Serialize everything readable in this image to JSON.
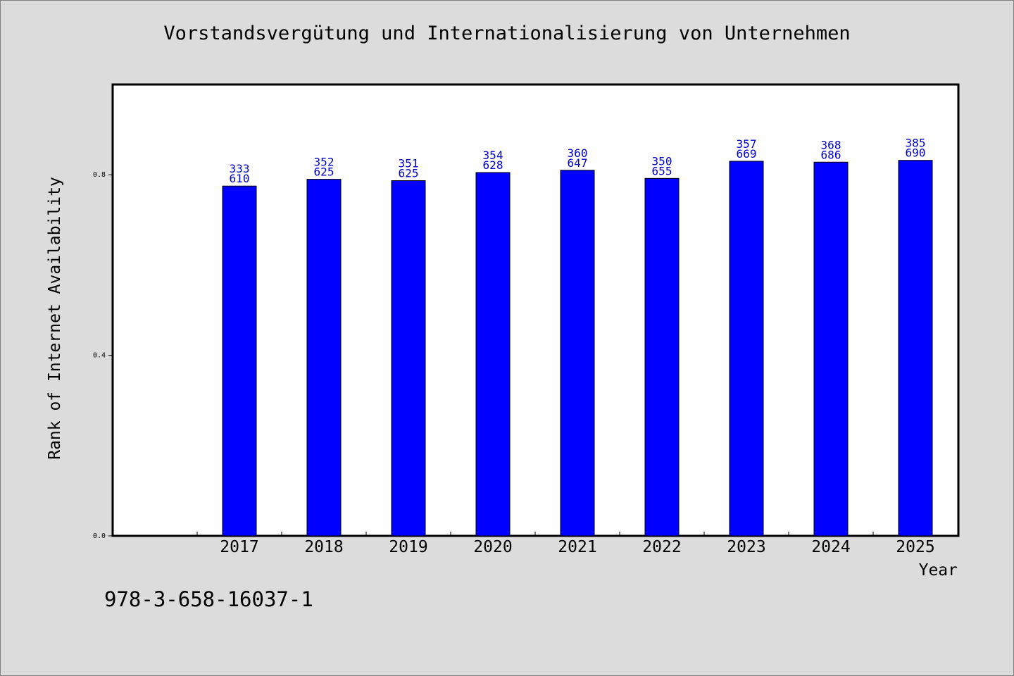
{
  "chart_data": {
    "type": "bar",
    "title": "Vorstandsvergütung und Internationalisierung von Unternehmen",
    "xlabel": "Year",
    "ylabel": "Rank of Internet Availability",
    "ylim": [
      0,
      1.0
    ],
    "yticks": [
      "0.0",
      "0.4",
      "0.8"
    ],
    "ytick_values": [
      0.0,
      0.4,
      0.8
    ],
    "categories": [
      "2017",
      "2018",
      "2019",
      "2020",
      "2021",
      "2022",
      "2023",
      "2024",
      "2025"
    ],
    "values": [
      0.775,
      0.79,
      0.787,
      0.805,
      0.81,
      0.792,
      0.83,
      0.828,
      0.832
    ],
    "label_top": [
      "333",
      "352",
      "351",
      "354",
      "360",
      "350",
      "357",
      "368",
      "385"
    ],
    "label_bottom": [
      "610",
      "625",
      "625",
      "628",
      "647",
      "655",
      "669",
      "686",
      "690"
    ],
    "bar_color": "#0000ff",
    "label_color": "#0000cc",
    "grid": false
  },
  "footer": {
    "id_text": "978-3-658-16037-1"
  }
}
